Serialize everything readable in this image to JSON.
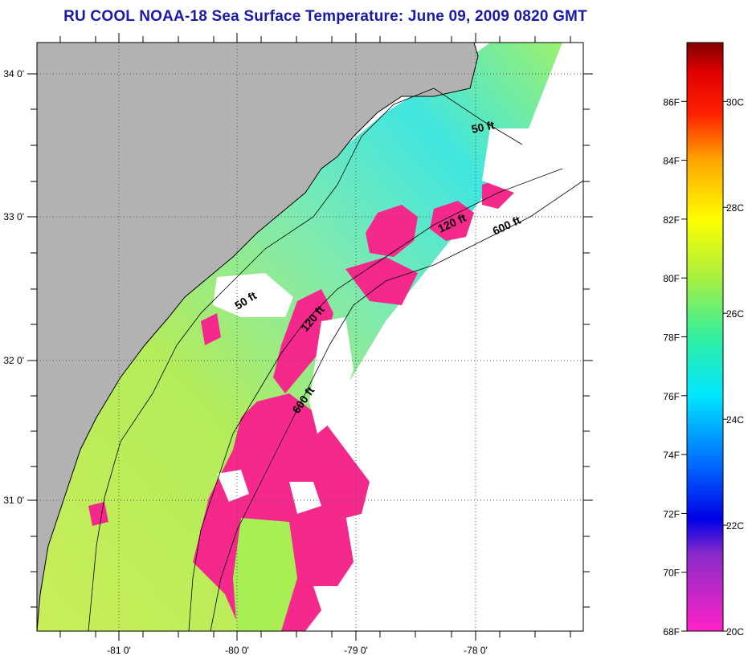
{
  "title": "RU COOL  NOAA-18  Sea Surface Temperature:  June 09, 2009 0820 GMT",
  "map": {
    "longitude_ticks": [
      "-81 0'",
      "-80 0'",
      "-79 0'",
      "-78 0'"
    ],
    "latitude_ticks": [
      "34 0'",
      "33 0'",
      "32 0'",
      "31 0'"
    ],
    "contour_labels": [
      "50 ft",
      "120 ft",
      "600 ft",
      "50 ft",
      "120 ft",
      "600 ft"
    ],
    "colors": {
      "land": "#b2b2b2",
      "no_data": "#ffffff",
      "cold_pixels": "#f5288c",
      "coastline": "#000000",
      "title": "#1a1aa8"
    }
  },
  "colorbar": {
    "fahrenheit_labels": [
      "86F",
      "84F",
      "82F",
      "80F",
      "78F",
      "76F",
      "74F",
      "72F",
      "70F",
      "68F"
    ],
    "celsius_labels": [
      "30C",
      "28C",
      "26C",
      "24C",
      "22C",
      "20C"
    ],
    "fahrenheit_values": [
      86,
      84,
      82,
      80,
      78,
      76,
      74,
      72,
      70,
      68
    ],
    "celsius_values": [
      30,
      28,
      26,
      24,
      22,
      20
    ],
    "range_f": [
      68,
      88
    ],
    "colormap": [
      "#ff22c8",
      "#8a2bc8",
      "#0000e6",
      "#0066ff",
      "#00e6ff",
      "#33f0a0",
      "#a8f040",
      "#ffff00",
      "#ffa500",
      "#ff2000",
      "#e00000",
      "#800000"
    ]
  }
}
